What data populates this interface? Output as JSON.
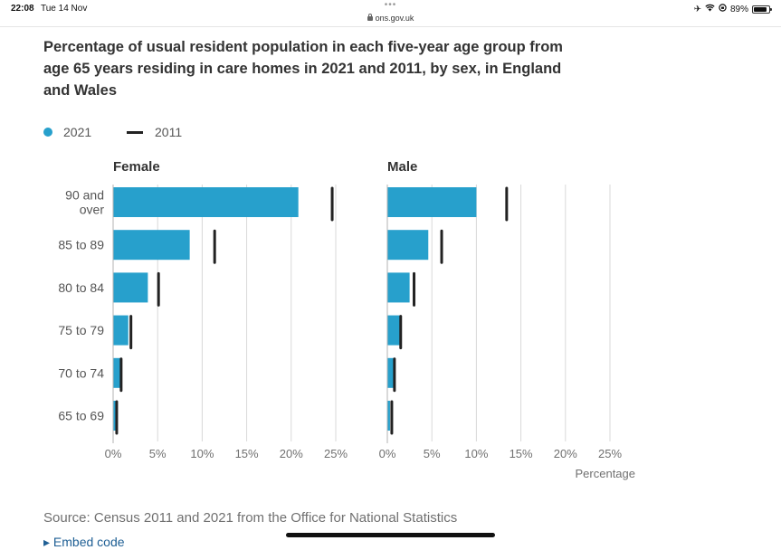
{
  "status_bar": {
    "time": "22:08",
    "date": "Tue 14 Nov",
    "dots": "•••",
    "url": "ons.gov.uk",
    "battery_text": "89%",
    "battery_level": 0.89
  },
  "source_text": "Source: Census 2011 and 2021 from the Office for National Statistics",
  "embed_text": "▸ Embed code",
  "chart_data": {
    "type": "bar",
    "title": "Percentage of usual resident population in each five-year age group from age 65 years residing in care homes in 2021 and 2011, by sex, in England and Wales",
    "categories": [
      "90 and over",
      "85 to 89",
      "80 to 84",
      "75 to 79",
      "70 to 74",
      "65 to 69"
    ],
    "legend": [
      {
        "name": "2021",
        "color": "#27a0cc",
        "marker": "dot"
      },
      {
        "name": "2011",
        "color": "#222222",
        "marker": "line"
      }
    ],
    "panels": [
      {
        "name": "Female",
        "series": [
          {
            "name": "2021",
            "values": [
              20.8,
              8.6,
              3.9,
              1.7,
              0.8,
              0.3
            ]
          },
          {
            "name": "2011",
            "values": [
              24.6,
              11.4,
              5.1,
              2.0,
              0.9,
              0.4
            ]
          }
        ]
      },
      {
        "name": "Male",
        "series": [
          {
            "name": "2021",
            "values": [
              10.0,
              4.6,
              2.5,
              1.4,
              0.7,
              0.3
            ]
          },
          {
            "name": "2011",
            "values": [
              13.4,
              6.1,
              3.0,
              1.5,
              0.8,
              0.5
            ]
          }
        ]
      }
    ],
    "xlim": [
      0,
      25
    ],
    "xticks": [
      0,
      5,
      10,
      15,
      20,
      25
    ],
    "xtick_labels": [
      "0%",
      "5%",
      "10%",
      "15%",
      "20%",
      "25%"
    ],
    "xlabel": "Percentage",
    "grid": true,
    "legend_position": "top-left",
    "colors": {
      "bar_2021": "#27a0cc",
      "marker_2011": "#222222",
      "grid": "#d9d9d9",
      "axis": "#b3b3b3"
    }
  }
}
